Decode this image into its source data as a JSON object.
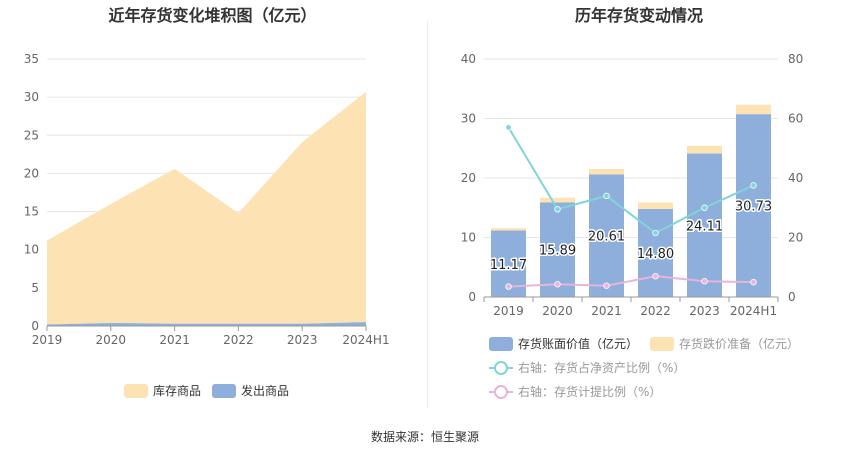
{
  "source": {
    "label": "数据来源：",
    "value": "恒生聚源"
  },
  "chart_data": [
    {
      "type": "area",
      "stacked": true,
      "title": "近年存货变化堆积图（亿元）",
      "categories": [
        "2019",
        "2020",
        "2021",
        "2022",
        "2023",
        "2024H1"
      ],
      "ylim": [
        0,
        35
      ],
      "yticks": [
        0,
        5,
        10,
        15,
        20,
        25,
        30,
        35
      ],
      "grid": true,
      "legend_position": "bottom",
      "series": [
        {
          "name": "库存商品",
          "values": [
            11.0,
            15.6,
            20.3,
            14.5,
            23.8,
            30.2
          ],
          "color": "#fde2b4"
        },
        {
          "name": "发出商品",
          "values": [
            0.2,
            0.4,
            0.3,
            0.3,
            0.3,
            0.5
          ],
          "color": "#8eaedb"
        }
      ]
    },
    {
      "type": "bar",
      "stacked": true,
      "title": "历年存货变动情况",
      "categories": [
        "2019",
        "2020",
        "2021",
        "2022",
        "2023",
        "2024H1"
      ],
      "ylim": [
        0,
        40
      ],
      "yticks": [
        0,
        10,
        20,
        30,
        40
      ],
      "y2lim": [
        0,
        80
      ],
      "y2ticks": [
        0,
        20,
        40,
        60,
        80
      ],
      "grid": true,
      "legend_position": "bottom",
      "series": [
        {
          "name": "存货账面价值（亿元）",
          "type": "bar",
          "values": [
            11.17,
            15.89,
            20.61,
            14.8,
            24.11,
            30.73
          ],
          "labels": [
            "11.17",
            "15.89",
            "20.61",
            "14.80",
            "24.11",
            "30.73"
          ],
          "color": "#8eaedb"
        },
        {
          "name": "存货跌价准备（亿元）",
          "type": "bar",
          "values": [
            0.4,
            0.8,
            0.9,
            1.1,
            1.3,
            1.6
          ],
          "color": "#fde2b4"
        },
        {
          "name": "右轴：存货占净资产比例（%）",
          "type": "line",
          "axis": "right",
          "values": [
            57.0,
            29.5,
            34.0,
            21.5,
            30.0,
            37.5
          ],
          "color": "#7fd5d9"
        },
        {
          "name": "右轴：存货计提比例（%）",
          "type": "line",
          "axis": "right",
          "values": [
            3.5,
            4.3,
            3.8,
            7.0,
            5.3,
            5.0
          ],
          "color": "#e8b4d8"
        }
      ]
    }
  ]
}
